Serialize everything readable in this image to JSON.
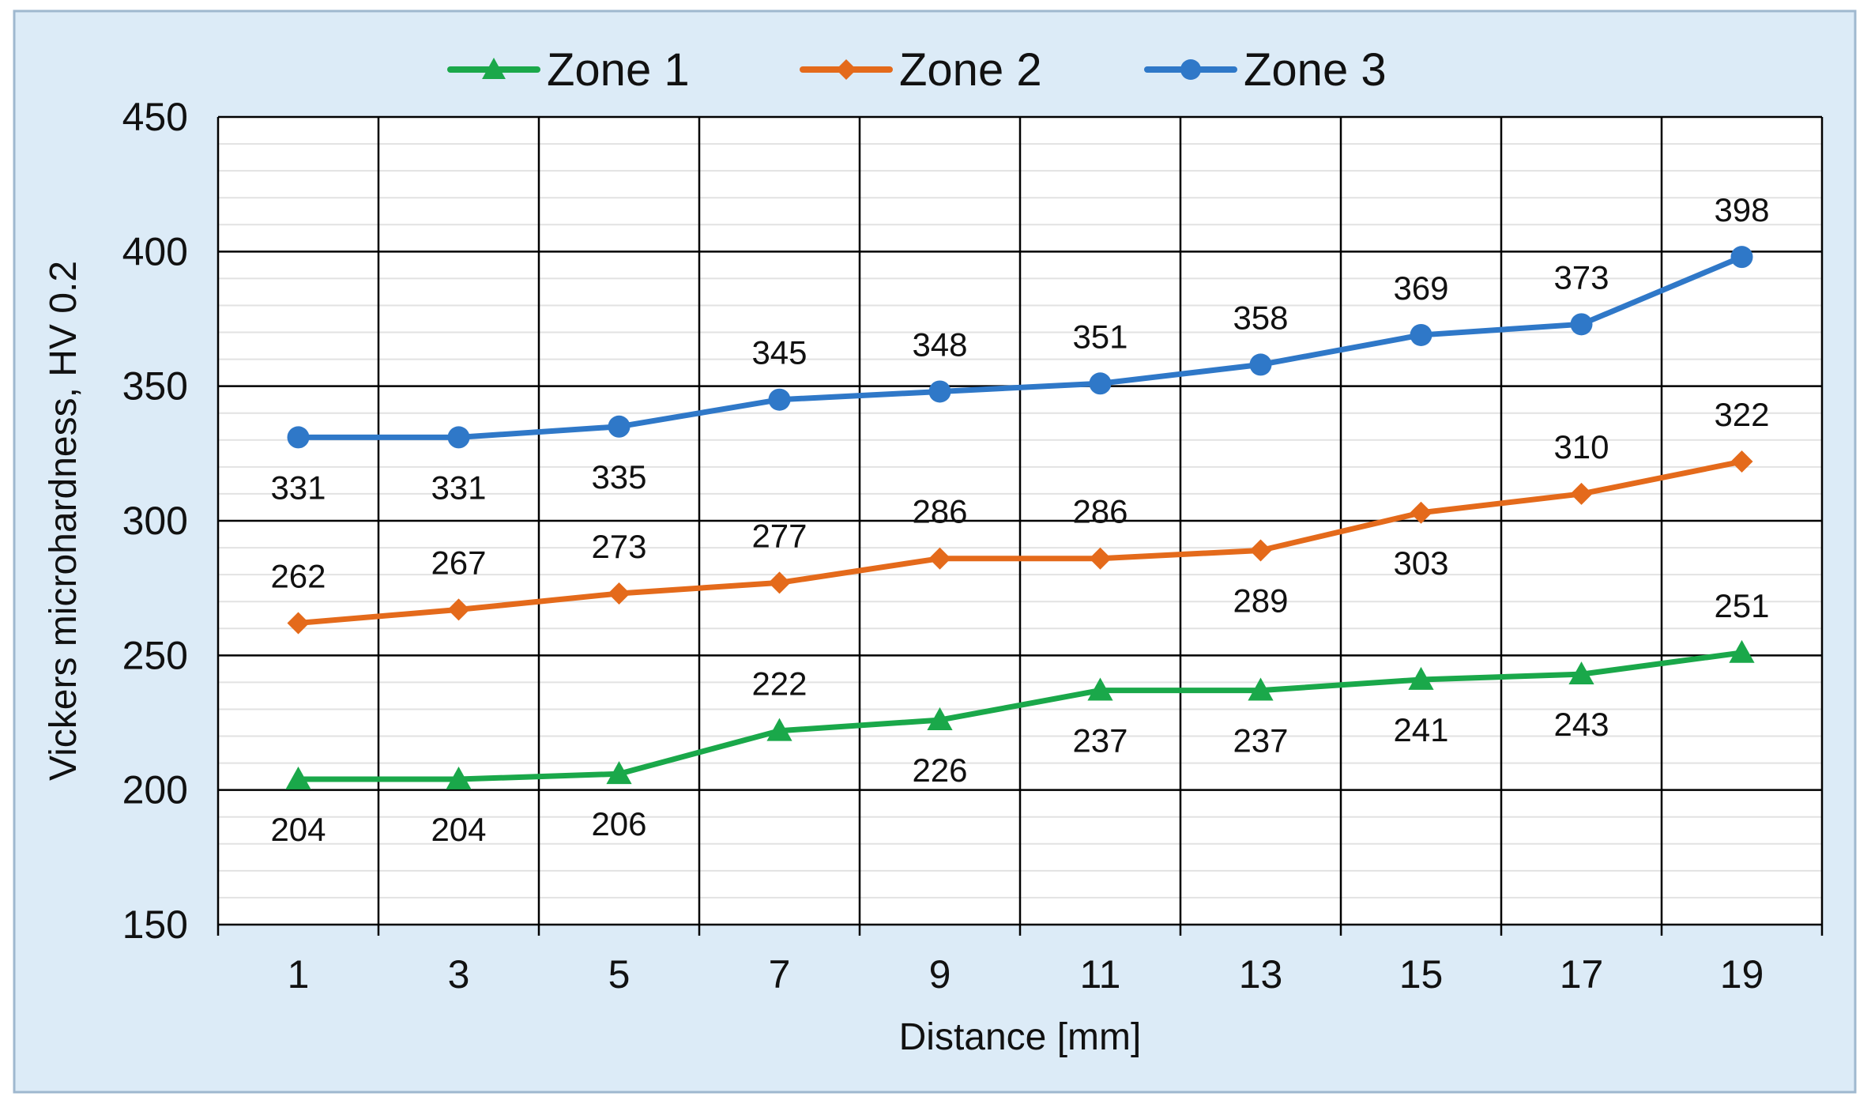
{
  "chart_data": {
    "type": "line",
    "title": "",
    "xlabel": "Distance [mm]",
    "ylabel": "Vickers microhardness,  HV 0.2",
    "categories": [
      "1",
      "3",
      "5",
      "7",
      "9",
      "11",
      "13",
      "15",
      "17",
      "19"
    ],
    "ylim": [
      150,
      450
    ],
    "yticks": [
      "150",
      "200",
      "250",
      "300",
      "350",
      "400",
      "450"
    ],
    "grid": true,
    "legend_position": "top",
    "background_color": "#dcebf7",
    "plot_background_color": "#ffffff",
    "series": [
      {
        "name": "Zone 1",
        "color": "#1aa84a",
        "marker": "triangle",
        "values": [
          204,
          204,
          206,
          222,
          226,
          237,
          237,
          241,
          243,
          251
        ],
        "labels": [
          "204",
          "204",
          "206",
          "222",
          "226",
          "237",
          "237",
          "241",
          "243",
          "251"
        ],
        "label_positions": [
          "below",
          "below",
          "below",
          "above",
          "below",
          "below",
          "below",
          "below",
          "below",
          "above"
        ]
      },
      {
        "name": "Zone 2",
        "color": "#e46a1b",
        "marker": "diamond",
        "values": [
          262,
          267,
          273,
          277,
          286,
          286,
          289,
          303,
          310,
          322
        ],
        "labels": [
          "262",
          "267",
          "273",
          "277",
          "286",
          "286",
          "289",
          "303",
          "310",
          "322"
        ],
        "label_positions": [
          "above",
          "above",
          "above",
          "above",
          "above",
          "above",
          "below",
          "below",
          "above",
          "above"
        ]
      },
      {
        "name": "Zone 3",
        "color": "#2f78c8",
        "marker": "circle",
        "values": [
          331,
          331,
          335,
          345,
          348,
          351,
          358,
          369,
          373,
          398
        ],
        "labels": [
          "331",
          "331",
          "335",
          "345",
          "348",
          "351",
          "358",
          "369",
          "373",
          "398"
        ],
        "label_positions": [
          "below",
          "below",
          "below",
          "above",
          "above",
          "above",
          "above",
          "above",
          "above",
          "above"
        ]
      }
    ]
  }
}
